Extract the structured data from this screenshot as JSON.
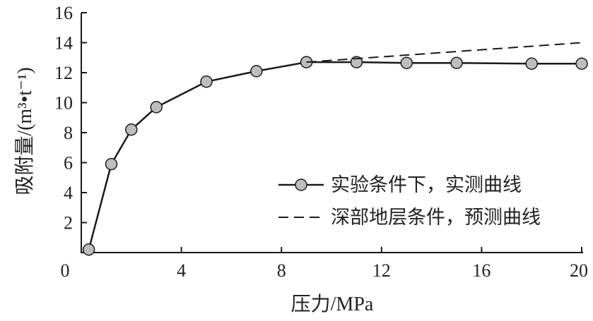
{
  "chart_data": {
    "type": "line",
    "title": "",
    "xlabel": "压力/MPa",
    "ylabel": "吸附量/(m³•t⁻¹)",
    "xlim": [
      0,
      20
    ],
    "ylim": [
      0,
      16
    ],
    "xticks": [
      0,
      4,
      8,
      12,
      16,
      20
    ],
    "yticks": [
      2,
      4,
      6,
      8,
      10,
      12,
      14,
      16
    ],
    "legend_position": "lower-right",
    "grid": false,
    "colors": {
      "line": "#1a1a1a",
      "marker_fill": "#bdbdbd",
      "marker_stroke": "#1a1a1a",
      "axis": "#1a1a1a"
    },
    "series": [
      {
        "name": "实验条件下，实测曲线",
        "style": "solid-with-markers",
        "x": [
          0.3,
          1.2,
          2.0,
          3.0,
          5.0,
          7.0,
          9.0,
          11.0,
          13.0,
          15.0,
          18.0,
          20.0
        ],
        "y": [
          0.2,
          5.9,
          8.2,
          9.7,
          11.4,
          12.1,
          12.7,
          12.7,
          12.65,
          12.65,
          12.6,
          12.6
        ]
      },
      {
        "name": "深部地层条件，预测曲线",
        "style": "dashed",
        "x": [
          9.0,
          20.0
        ],
        "y": [
          12.7,
          14.0
        ]
      }
    ]
  }
}
